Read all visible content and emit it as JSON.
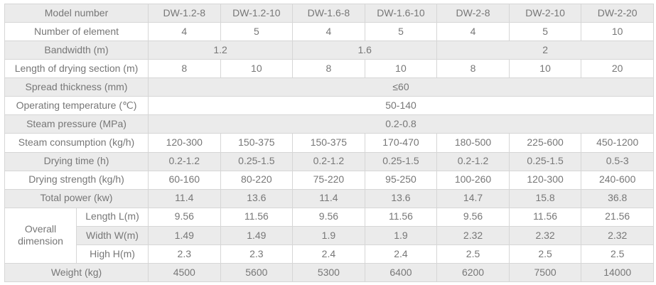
{
  "colors": {
    "stripe": "#ebebeb",
    "border": "#d6d6d6",
    "text": "#777777",
    "bg": "#ffffff"
  },
  "table": {
    "corner_label": "Model number",
    "model_columns": [
      "DW-1.2-8",
      "DW-1.2-10",
      "DW-1.6-8",
      "DW-1.6-10",
      "DW-2-8",
      "DW-2-10",
      "DW-2-20"
    ],
    "rows": [
      {
        "label": "Model number",
        "label_colspan": 2,
        "header": true,
        "cells": [
          "DW-1.2-8",
          "DW-1.2-10",
          "DW-1.6-8",
          "DW-1.6-10",
          "DW-2-8",
          "DW-2-10",
          "DW-2-20"
        ]
      },
      {
        "label": "Number of element",
        "label_colspan": 2,
        "cells": [
          "4",
          "5",
          "4",
          "5",
          "4",
          "5",
          "10"
        ]
      },
      {
        "label": "Bandwidth (m)",
        "label_colspan": 2,
        "cells": [
          {
            "text": "1.2",
            "colspan": 2
          },
          {
            "text": "1.6",
            "colspan": 2
          },
          {
            "text": "2",
            "colspan": 3
          }
        ]
      },
      {
        "label": "Length of drying section (m)",
        "label_colspan": 2,
        "cells": [
          "8",
          "10",
          "8",
          "10",
          "8",
          "10",
          "20"
        ]
      },
      {
        "label": "Spread thickness (mm)",
        "label_colspan": 2,
        "cells": [
          {
            "text": "≤60",
            "colspan": 7
          }
        ]
      },
      {
        "label": "Operating temperature (℃)",
        "label_colspan": 2,
        "cells": [
          {
            "text": "50-140",
            "colspan": 7
          }
        ]
      },
      {
        "label": "Steam pressure (MPa)",
        "label_colspan": 2,
        "cells": [
          {
            "text": "0.2-0.8",
            "colspan": 7
          }
        ]
      },
      {
        "label": "Steam consumption (kg/h)",
        "label_colspan": 2,
        "cells": [
          "120-300",
          "150-375",
          "150-375",
          "170-470",
          "180-500",
          "225-600",
          "450-1200"
        ]
      },
      {
        "label": "Drying time (h)",
        "label_colspan": 2,
        "cells": [
          "0.2-1.2",
          "0.25-1.5",
          "0.2-1.2",
          "0.25-1.5",
          "0.2-1.2",
          "0.25-1.5",
          "0.5-3"
        ]
      },
      {
        "label": "Drying strength (kg/h)",
        "label_colspan": 2,
        "cells": [
          "60-160",
          "80-220",
          "75-220",
          "95-250",
          "100-260",
          "120-300",
          "240-600"
        ]
      },
      {
        "label": "Total power (kw)",
        "label_colspan": 2,
        "cells": [
          "11.4",
          "13.6",
          "11.4",
          "13.6",
          "14.7",
          "15.8",
          "36.8"
        ]
      },
      {
        "label": "Overall dimension",
        "label_colspan": 1,
        "label_rowspan": 3,
        "sub_label": "Length L(m)",
        "cells": [
          "9.56",
          "11.56",
          "9.56",
          "11.56",
          "9.56",
          "11.56",
          "21.56"
        ]
      },
      {
        "sub_label": "Width W(m)",
        "cells": [
          "1.49",
          "1.49",
          "1.9",
          "1.9",
          "2.32",
          "2.32",
          "2.32"
        ]
      },
      {
        "sub_label": "High H(m)",
        "cells": [
          "2.3",
          "2.3",
          "2.4",
          "2.4",
          "2.5",
          "2.5",
          "2.5"
        ]
      },
      {
        "label": "Weight (kg)",
        "label_colspan": 2,
        "cells": [
          "4500",
          "5600",
          "5300",
          "6400",
          "6200",
          "7500",
          "14000"
        ]
      }
    ]
  }
}
